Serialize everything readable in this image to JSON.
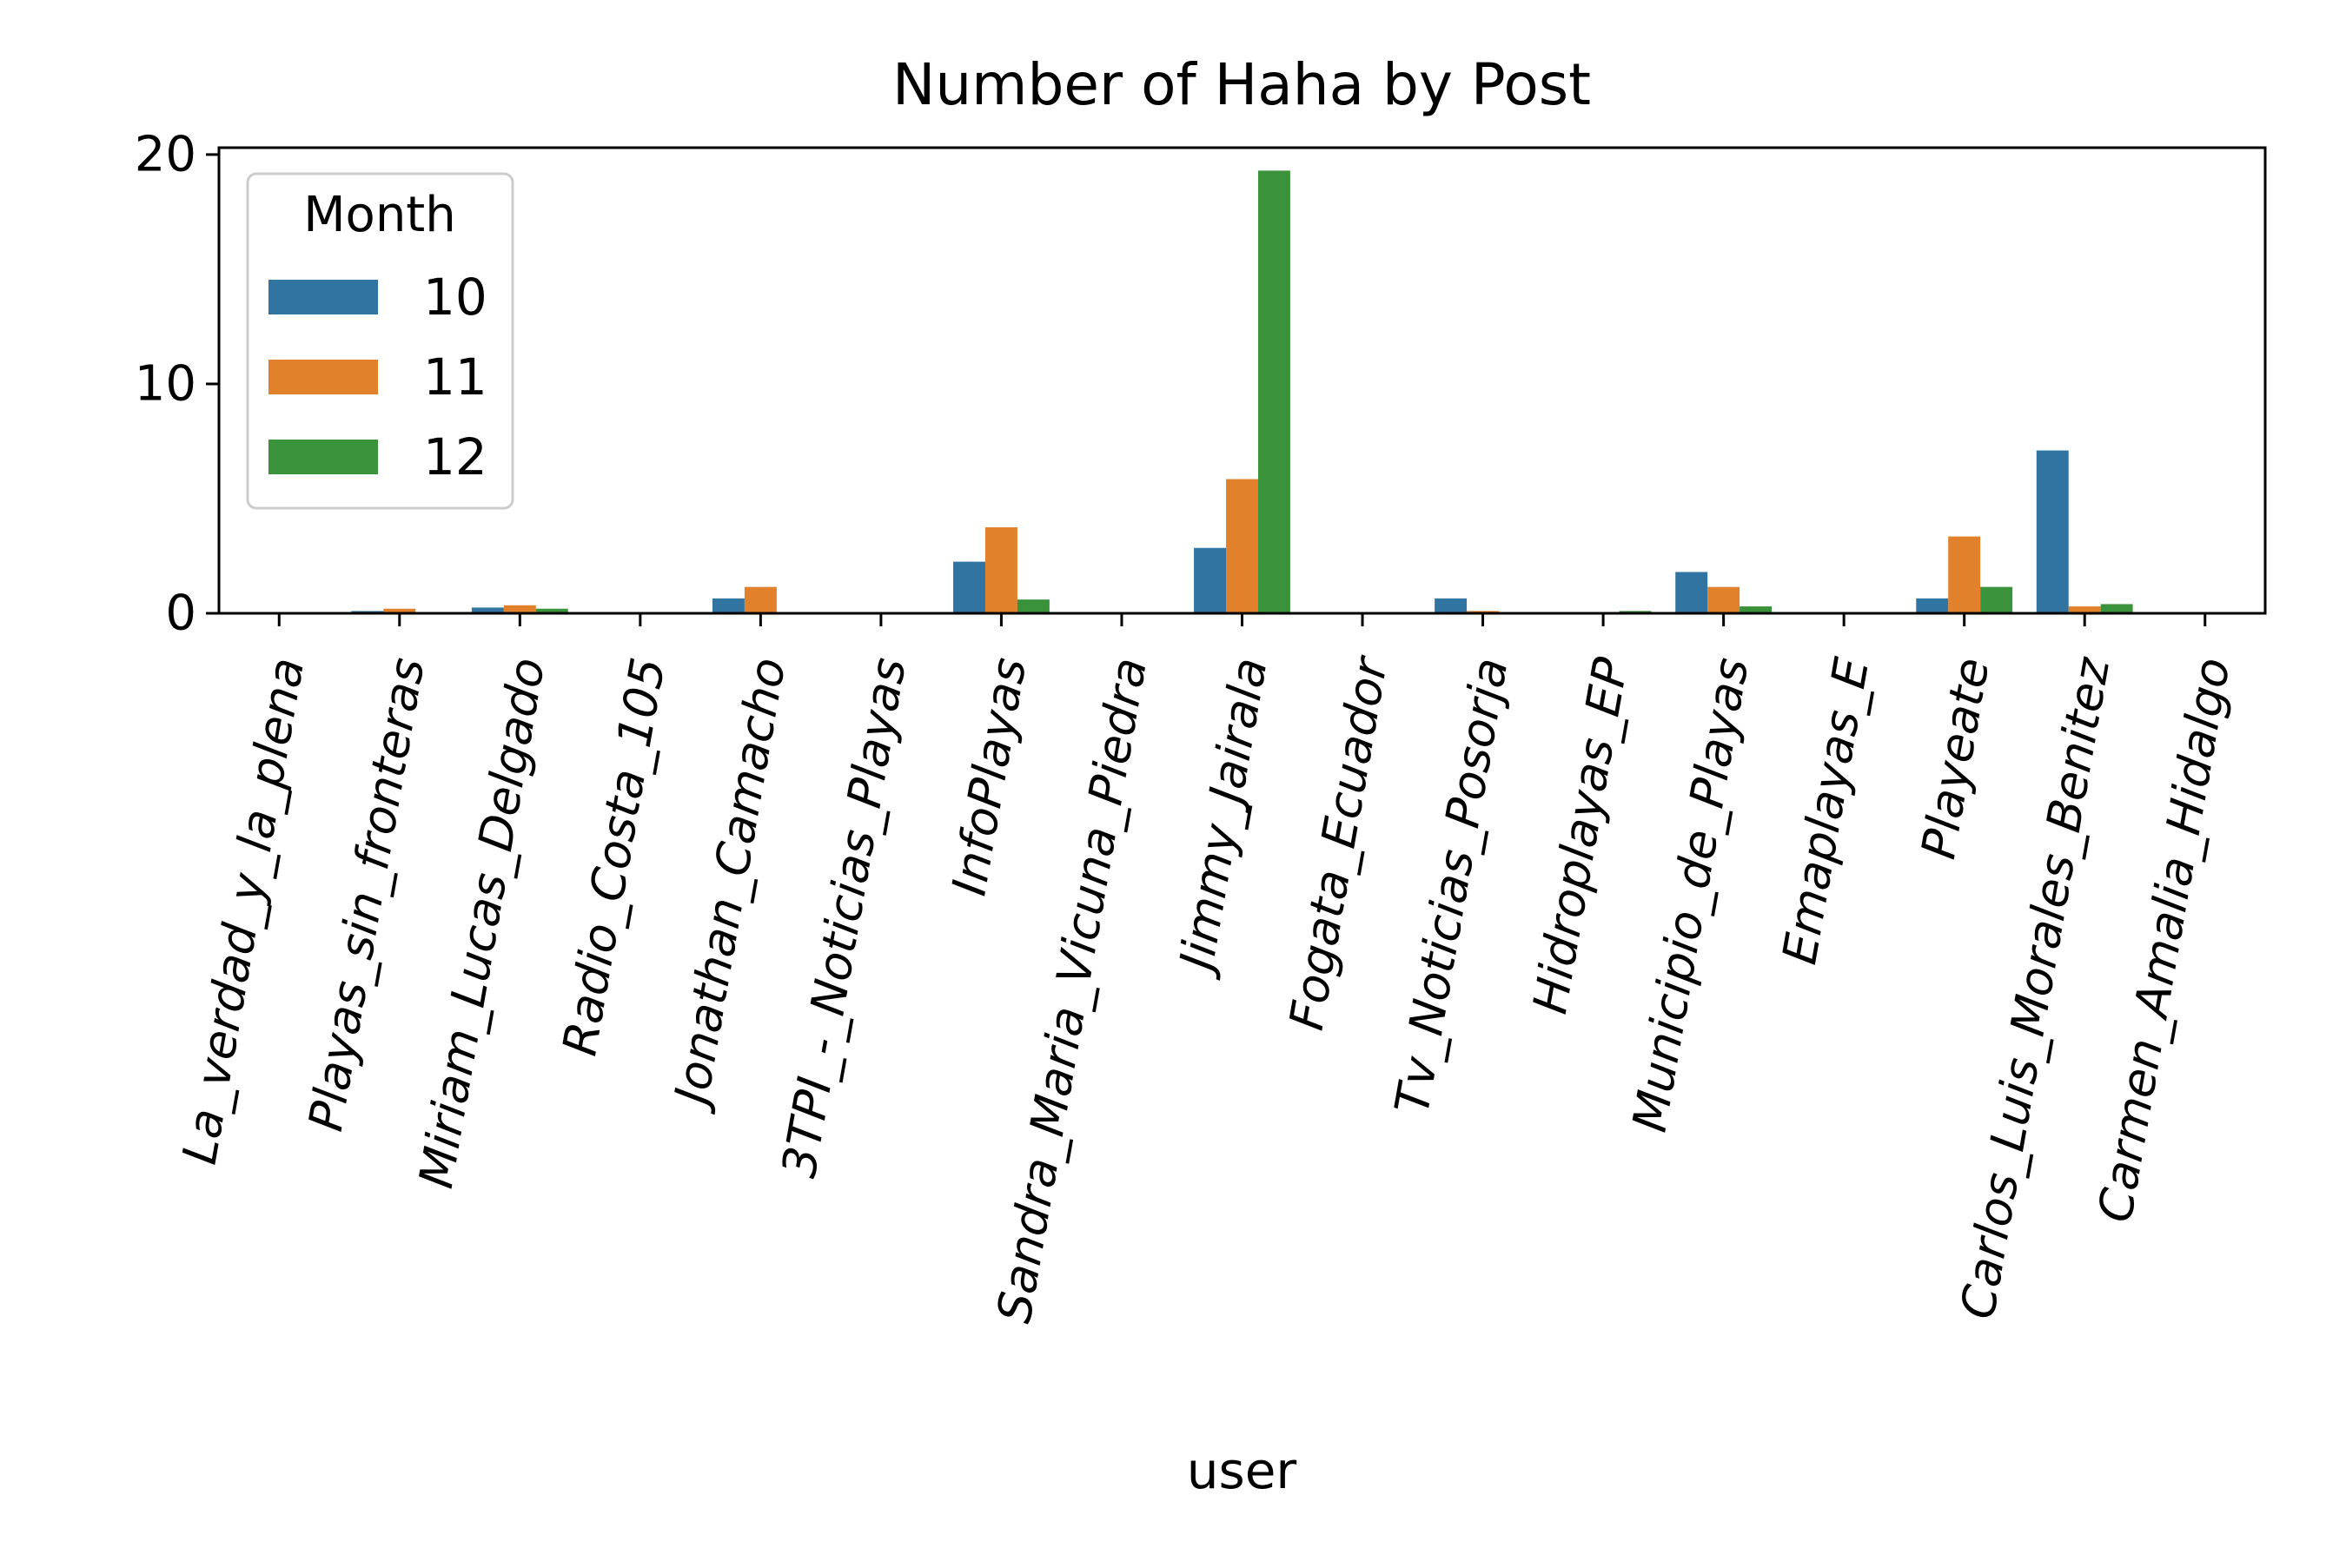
{
  "chart_data": {
    "type": "bar",
    "title": "Number of Haha by Post",
    "xlabel": "user",
    "ylabel": "",
    "ylim": [
      0,
      20.3
    ],
    "yticks": [
      0,
      10,
      20
    ],
    "grid": false,
    "legend": {
      "title": "Month",
      "placement": "top-left"
    },
    "categories": [
      "La_verdad_y_la_plena",
      "Playas_sin_fronteras",
      "Miriam_Lucas_Delgado",
      "Radio_Costa_105",
      "Jonathan_Camacho",
      "3TPI_-_Noticias_Playas",
      "InfoPlayas",
      "Sandra_Maria_Vicuna_Piedra",
      "Jimmy_Jairala",
      "Fogata_Ecuador",
      "Tv_Noticias_Posorja",
      "Hidroplayas_EP",
      "Municipio_de_Playas",
      "Emaplayas_E",
      "Playeate",
      "Carlos_Luis_Morales_Benitez",
      "Carmen_Amalia_Hidalgo"
    ],
    "series": [
      {
        "name": "10",
        "color": "#3274a1",
        "values": [
          0,
          0.1,
          0.25,
          0,
          0.65,
          0,
          2.25,
          0,
          2.85,
          0,
          0.65,
          0,
          1.8,
          0,
          0.65,
          7.1,
          0
        ]
      },
      {
        "name": "11",
        "color": "#e1812c",
        "values": [
          0,
          0.2,
          0.35,
          0,
          1.15,
          0,
          3.75,
          0,
          5.85,
          0,
          0.1,
          0,
          1.15,
          0,
          3.35,
          0.3,
          0
        ]
      },
      {
        "name": "12",
        "color": "#3a923a",
        "values": [
          0,
          0,
          0.2,
          0,
          0,
          0,
          0.6,
          0,
          19.3,
          0,
          0,
          0.1,
          0.3,
          0,
          1.15,
          0.4,
          0
        ]
      }
    ]
  }
}
